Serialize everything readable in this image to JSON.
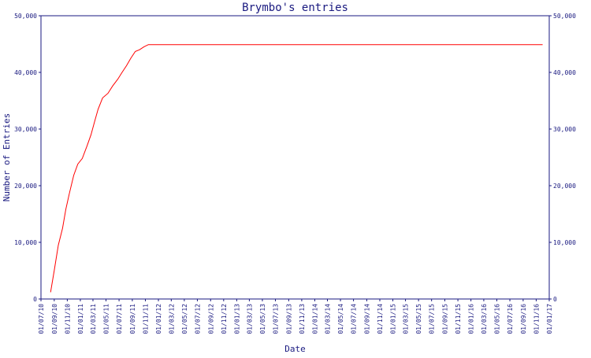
{
  "chart_data": {
    "type": "line",
    "title": "Brymbo's entries",
    "xlabel": "Date",
    "ylabel": "Number of Entries",
    "ylim": [
      0,
      50000
    ],
    "y_ticks": [
      "0",
      "10,000",
      "20,000",
      "30,000",
      "40,000",
      "50,000"
    ],
    "y_tick_values": [
      0,
      10000,
      20000,
      30000,
      40000,
      50000
    ],
    "x_tick_labels": [
      "01/07/10",
      "01/09/10",
      "01/11/10",
      "01/01/11",
      "01/03/11",
      "01/05/11",
      "01/07/11",
      "01/09/11",
      "01/11/11",
      "01/01/12",
      "01/03/12",
      "01/05/12",
      "01/07/12",
      "01/09/12",
      "01/11/12",
      "01/01/13",
      "01/03/13",
      "01/05/13",
      "01/07/13",
      "01/09/13",
      "01/11/13",
      "01/01/14",
      "01/03/14",
      "01/05/14",
      "01/07/14",
      "01/09/14",
      "01/11/14",
      "01/01/15",
      "01/03/15",
      "01/05/15",
      "01/07/15",
      "01/09/15",
      "01/11/15",
      "01/01/16",
      "01/03/16",
      "01/05/16",
      "01/07/16",
      "01/09/16",
      "01/11/16",
      "01/01/17"
    ],
    "grid": false,
    "legend": "none",
    "colors": {
      "line": "#ff0000",
      "axis": "#1a1a80",
      "text": "#1a1a80"
    },
    "series": [
      {
        "x": [
          "2010-08-15",
          "2010-09-01",
          "2010-09-20",
          "2010-10-10",
          "2010-10-25",
          "2010-11-10",
          "2010-12-01",
          "2010-12-20",
          "2011-01-10",
          "2011-02-01",
          "2011-02-20",
          "2011-03-10",
          "2011-03-25",
          "2011-04-15",
          "2011-05-10",
          "2011-06-01",
          "2011-06-25",
          "2011-07-15",
          "2011-08-05",
          "2011-08-25",
          "2011-09-15",
          "2011-10-05",
          "2011-10-25",
          "2011-11-15",
          "2011-12-05",
          "2011-12-25",
          "2012-01-20",
          "2012-02-10",
          "2012-03-01",
          "2012-03-20",
          "2012-04-10",
          "2012-04-25",
          "2012-05-10",
          "2012-06-01",
          "2013-01-01",
          "2014-01-01",
          "2015-01-01",
          "2016-01-01",
          "2016-12-01"
        ],
        "y": [
          1200,
          5000,
          9500,
          12500,
          15800,
          18500,
          21800,
          23800,
          24800,
          27000,
          29000,
          31500,
          33500,
          35500,
          36300,
          37600,
          38800,
          40000,
          41200,
          42500,
          43700,
          44000,
          44500,
          44900,
          44900,
          44900,
          44900,
          44900,
          44900,
          44900,
          44900,
          44900,
          44900,
          44900,
          44900,
          44900,
          44900,
          44900,
          44900
        ]
      }
    ]
  }
}
